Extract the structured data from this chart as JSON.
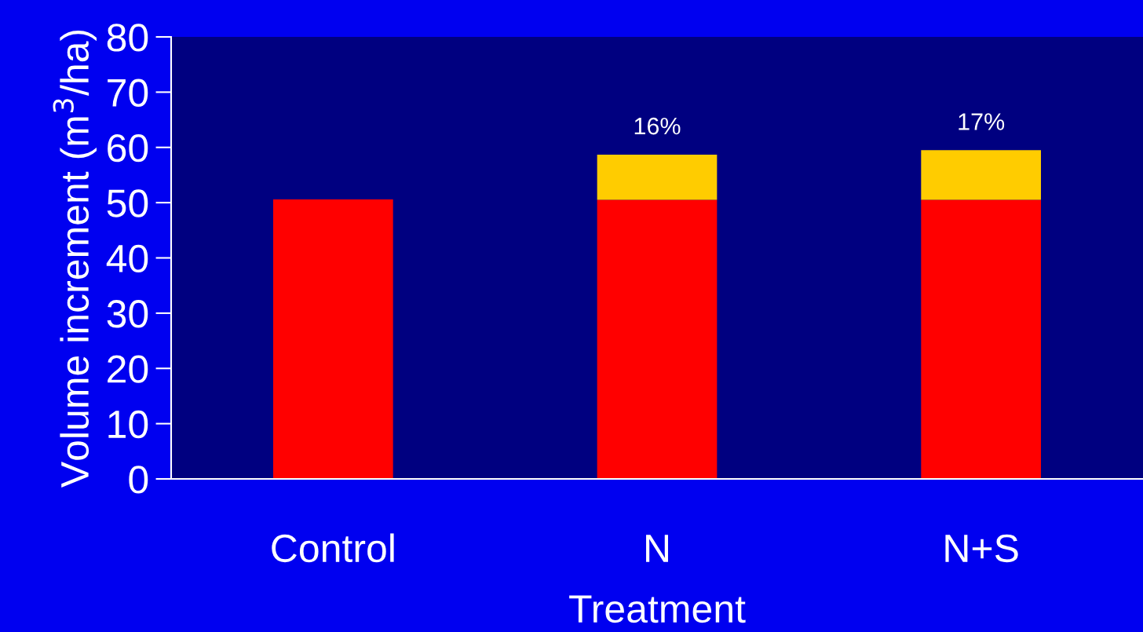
{
  "chart_data": {
    "type": "bar",
    "stacked": true,
    "xlabel": "Treatment",
    "ylabel": "Volume increment (m$^{3}$/ha)",
    "categories": [
      "Control",
      "N",
      "N+S"
    ],
    "series": [
      {
        "color": "#ff0000",
        "values": [
          50.6,
          50.5,
          50.5
        ]
      },
      {
        "color": "#ffcc00",
        "values": [
          null,
          8.2,
          9.0
        ]
      }
    ],
    "annotations": [
      "16%",
      "17%"
    ],
    "ylim": [
      0,
      80
    ],
    "yticks": [
      0,
      10,
      20,
      30,
      40,
      50,
      60,
      70,
      80
    ],
    "grid": false,
    "legend": false
  }
}
